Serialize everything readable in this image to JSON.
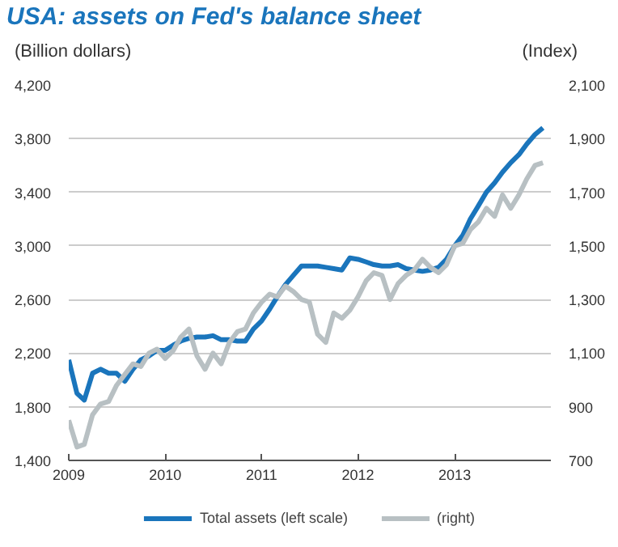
{
  "chart_data": {
    "type": "line",
    "title": "USA: assets on Fed's balance sheet",
    "ylabel": "(Billion dollars)",
    "y2label": "(Index)",
    "x": [
      "2009-01",
      "2009-02",
      "2009-03",
      "2009-04",
      "2009-05",
      "2009-06",
      "2009-07",
      "2009-08",
      "2009-09",
      "2009-10",
      "2009-11",
      "2009-12",
      "2010-01",
      "2010-02",
      "2010-03",
      "2010-04",
      "2010-05",
      "2010-06",
      "2010-07",
      "2010-08",
      "2010-09",
      "2010-10",
      "2010-11",
      "2010-12",
      "2011-01",
      "2011-02",
      "2011-03",
      "2011-04",
      "2011-05",
      "2011-06",
      "2011-07",
      "2011-08",
      "2011-09",
      "2011-10",
      "2011-11",
      "2011-12",
      "2012-01",
      "2012-02",
      "2012-03",
      "2012-04",
      "2012-05",
      "2012-06",
      "2012-07",
      "2012-08",
      "2012-09",
      "2012-10",
      "2012-11",
      "2012-12",
      "2013-01",
      "2013-02",
      "2013-03",
      "2013-04",
      "2013-05",
      "2013-06",
      "2013-07",
      "2013-08",
      "2013-09",
      "2013-10",
      "2013-11",
      "2013-12"
    ],
    "series": [
      {
        "name": "Total assets (left scale)",
        "color": "#1a75bc",
        "values": [
          2150,
          1900,
          1850,
          2050,
          2080,
          2050,
          2050,
          1990,
          2080,
          2150,
          2180,
          2220,
          2220,
          2260,
          2290,
          2310,
          2320,
          2320,
          2330,
          2300,
          2300,
          2290,
          2290,
          2380,
          2440,
          2530,
          2620,
          2710,
          2780,
          2850,
          2850,
          2850,
          2840,
          2830,
          2820,
          2910,
          2900,
          2880,
          2860,
          2850,
          2850,
          2860,
          2830,
          2820,
          2810,
          2820,
          2840,
          2900,
          3000,
          3080,
          3200,
          3300,
          3400,
          3470,
          3550,
          3620,
          3680,
          3760,
          3830,
          3880
        ]
      },
      {
        "name": "(right)",
        "color": "#b8c0c3",
        "axis": "y2",
        "values": [
          850,
          750,
          760,
          870,
          910,
          920,
          980,
          1020,
          1060,
          1050,
          1100,
          1115,
          1080,
          1110,
          1160,
          1190,
          1090,
          1040,
          1100,
          1060,
          1140,
          1180,
          1190,
          1250,
          1290,
          1320,
          1310,
          1350,
          1330,
          1300,
          1290,
          1170,
          1140,
          1250,
          1230,
          1260,
          1310,
          1370,
          1400,
          1390,
          1300,
          1360,
          1390,
          1410,
          1450,
          1420,
          1400,
          1430,
          1500,
          1510,
          1560,
          1590,
          1640,
          1610,
          1690,
          1640,
          1690,
          1750,
          1800,
          1810
        ]
      }
    ],
    "xlim": [
      "2009-01-01",
      "2013-12-31"
    ],
    "xticks": [
      "2009",
      "2010",
      "2011",
      "2012",
      "2013"
    ],
    "ylim": [
      1400,
      4200
    ],
    "yticks": [
      {
        "value": 1400,
        "label": "1,400"
      },
      {
        "value": 1800,
        "label": "1,800"
      },
      {
        "value": 2200,
        "label": "2,200"
      },
      {
        "value": 2600,
        "label": "2,600"
      },
      {
        "value": 3000,
        "label": "3,000"
      },
      {
        "value": 3400,
        "label": "3,400"
      },
      {
        "value": 3800,
        "label": "3,800"
      },
      {
        "value": 4200,
        "label": "4,200"
      }
    ],
    "y2lim": [
      700,
      2100
    ],
    "y2ticks": [
      700,
      900,
      {
        "value": 1100,
        "label": "1,100"
      },
      {
        "value": 1300,
        "label": "1,300"
      },
      {
        "value": 1500,
        "label": "1,500"
      },
      {
        "value": 1700,
        "label": "1,700"
      },
      {
        "value": 1900,
        "label": "1,900"
      },
      {
        "value": 2100,
        "label": "2,100"
      }
    ],
    "grid": "y",
    "legend": "bottom",
    "line_style": "solid"
  }
}
